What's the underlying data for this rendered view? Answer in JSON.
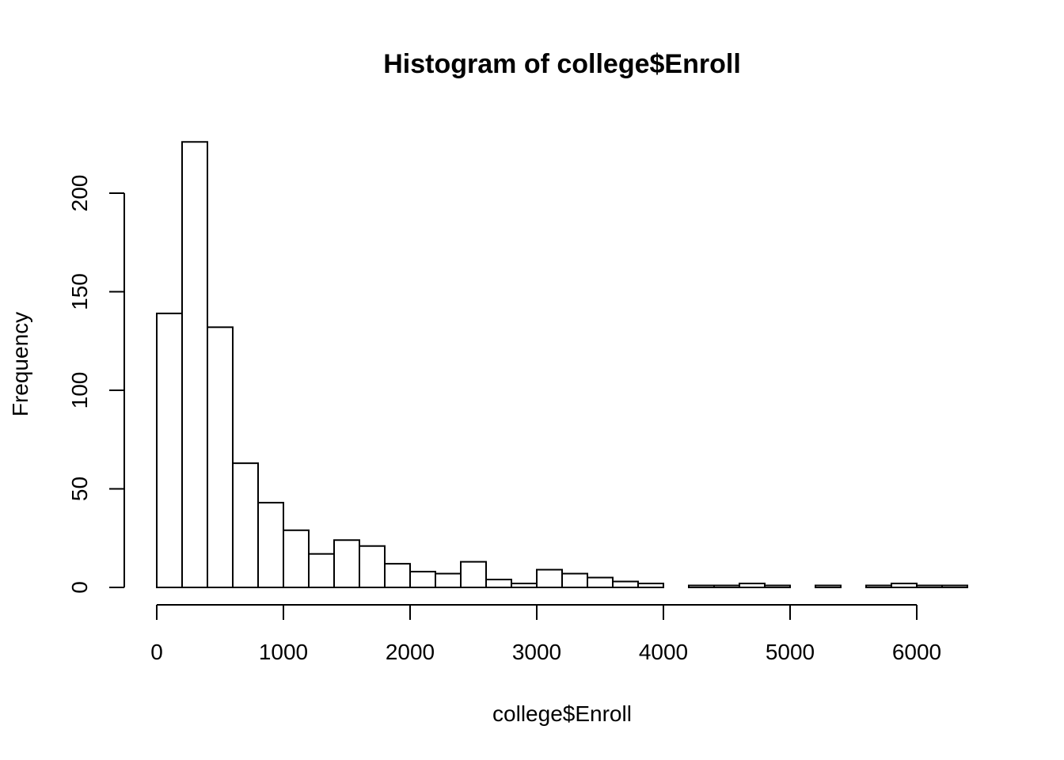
{
  "chart_data": {
    "type": "bar",
    "title": "Histogram of college$Enroll",
    "xlabel": "college$Enroll",
    "ylabel": "Frequency",
    "bin_edges": [
      0,
      200,
      400,
      600,
      800,
      1000,
      1200,
      1400,
      1600,
      1800,
      2000,
      2200,
      2400,
      2600,
      2800,
      3000,
      3200,
      3400,
      3600,
      3800,
      4000,
      4200,
      4400,
      4600,
      4800,
      5000,
      5200,
      5400,
      5600,
      5800,
      6000,
      6200,
      6400
    ],
    "values": [
      139,
      226,
      132,
      63,
      43,
      29,
      17,
      24,
      21,
      12,
      8,
      7,
      13,
      4,
      2,
      9,
      7,
      5,
      3,
      2,
      0,
      1,
      1,
      2,
      1,
      0,
      1,
      0,
      1,
      2,
      1,
      1
    ],
    "xlim": [
      0,
      6400
    ],
    "ylim": [
      0,
      226
    ],
    "x_ticks": [
      0,
      1000,
      2000,
      3000,
      4000,
      5000,
      6000
    ],
    "x_tick_labels": [
      "0",
      "1000",
      "2000",
      "3000",
      "4000",
      "5000",
      "6000"
    ],
    "y_ticks": [
      0,
      50,
      100,
      150,
      200
    ],
    "y_tick_labels": [
      "0",
      "50",
      "100",
      "150",
      "200"
    ],
    "grid": false,
    "colors": {
      "bar_fill": "#ffffff",
      "bar_stroke": "#000000"
    }
  }
}
